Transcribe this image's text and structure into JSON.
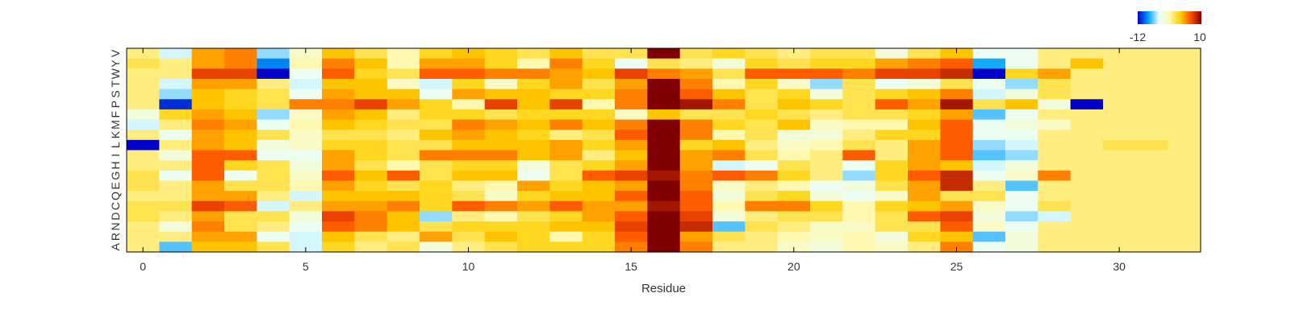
{
  "chart_data": {
    "type": "heatmap",
    "title": "",
    "xlabel": "Residue",
    "ylabel": "",
    "x_ticks": [
      0,
      5,
      10,
      15,
      20,
      25,
      30
    ],
    "xlim": [
      -0.5,
      32.5
    ],
    "row_labels": [
      "V",
      "Y",
      "W",
      "T",
      "S",
      "P",
      "F",
      "M",
      "K",
      "L",
      "I",
      "H",
      "G",
      "E",
      "Q",
      "C",
      "D",
      "N",
      "R",
      "A"
    ],
    "colorbar": {
      "min": -12,
      "max": 10,
      "min_label": "-12",
      "max_label": "10",
      "colors": [
        "#0000c8",
        "#00a0ff",
        "#e8ffff",
        "#fff8b0",
        "#ffd000",
        "#ff5000",
        "#800000"
      ]
    },
    "values": [
      [
        0,
        -5,
        4,
        5,
        -6,
        -2,
        3,
        1,
        -1,
        2,
        3,
        2,
        1,
        3,
        1,
        1,
        10,
        1,
        2,
        1,
        0,
        1,
        1,
        -3,
        1,
        3,
        -4,
        -4,
        0,
        0,
        0,
        0,
        0
      ],
      [
        1,
        0,
        4,
        5,
        -9,
        -1,
        5,
        3,
        -1,
        4,
        4,
        2,
        -1,
        5,
        2,
        -4,
        1,
        0,
        -3,
        2,
        1,
        2,
        2,
        4,
        5,
        6,
        -8,
        -4,
        0,
        3,
        0,
        0,
        0
      ],
      [
        0,
        0,
        7,
        7,
        -12,
        -4,
        6,
        2,
        1,
        6,
        6,
        5,
        5,
        4,
        3,
        7,
        5,
        4,
        1,
        6,
        6,
        6,
        5,
        7,
        7,
        8,
        -12,
        2,
        4,
        0,
        0,
        0,
        0
      ],
      [
        0,
        -5,
        4,
        4,
        0,
        -5,
        3,
        3,
        -2,
        -5,
        2,
        -2,
        2,
        4,
        1,
        4,
        10,
        5,
        -1,
        2,
        -2,
        -6,
        1,
        -4,
        -3,
        1,
        -4,
        -6,
        1,
        0,
        0,
        0,
        0
      ],
      [
        0,
        -6,
        3,
        2,
        1,
        -4,
        4,
        3,
        3,
        -4,
        4,
        3,
        3,
        2,
        2,
        5,
        10,
        6,
        3,
        1,
        2,
        -3,
        1,
        2,
        3,
        5,
        -5,
        -3,
        1,
        0,
        0,
        0,
        0
      ],
      [
        0,
        -11,
        3,
        2,
        1,
        5,
        5,
        7,
        4,
        2,
        -1,
        7,
        3,
        7,
        -1,
        5,
        10,
        9,
        5,
        1,
        3,
        2,
        1,
        6,
        4,
        9,
        1,
        3,
        -3,
        -12,
        0,
        0,
        0
      ],
      [
        -3,
        2,
        4,
        3,
        -6,
        -2,
        4,
        3,
        0,
        2,
        2,
        1,
        2,
        2,
        2,
        -2,
        3,
        1,
        1,
        2,
        1,
        0,
        1,
        1,
        2,
        4,
        -7,
        -4,
        0,
        0,
        0,
        0,
        0
      ],
      [
        -5,
        0,
        5,
        4,
        -4,
        -1,
        3,
        2,
        1,
        1,
        5,
        4,
        3,
        5,
        3,
        5,
        10,
        5,
        2,
        1,
        3,
        -2,
        -1,
        -1,
        3,
        6,
        -4,
        -3,
        -2,
        0,
        0,
        0,
        0
      ],
      [
        0,
        -4,
        4,
        3,
        1,
        -2,
        1,
        1,
        0,
        3,
        4,
        3,
        2,
        0,
        1,
        6,
        10,
        5,
        -1,
        1,
        -3,
        -3,
        0,
        2,
        2,
        6,
        -4,
        -4,
        0,
        0,
        0,
        0,
        0
      ],
      [
        -12,
        0,
        4,
        3,
        -3,
        -2,
        2,
        2,
        1,
        1,
        3,
        3,
        3,
        4,
        2,
        4,
        10,
        2,
        3,
        0,
        -2,
        -1,
        1,
        0,
        4,
        6,
        -6,
        -5,
        0,
        0,
        1,
        1,
        0
      ],
      [
        0,
        -3,
        6,
        6,
        -4,
        -4,
        4,
        2,
        1,
        5,
        5,
        5,
        3,
        4,
        0,
        3,
        10,
        4,
        5,
        1,
        -1,
        0,
        6,
        0,
        4,
        6,
        -7,
        -6,
        0,
        0,
        0,
        0,
        0
      ],
      [
        0,
        0,
        6,
        2,
        1,
        -3,
        4,
        1,
        -1,
        1,
        2,
        2,
        -3,
        1,
        2,
        4,
        10,
        4,
        -5,
        -4,
        1,
        0,
        -4,
        2,
        4,
        3,
        -5,
        -3,
        0,
        0,
        0,
        0,
        0
      ],
      [
        1,
        -4,
        6,
        -4,
        1,
        -2,
        6,
        3,
        6,
        1,
        3,
        3,
        -4,
        1,
        6,
        7,
        9,
        5,
        6,
        5,
        2,
        0,
        -6,
        2,
        6,
        8,
        -4,
        -2,
        5,
        0,
        0,
        0,
        0
      ],
      [
        1,
        0,
        4,
        1,
        1,
        -1,
        4,
        2,
        1,
        2,
        0,
        -1,
        4,
        2,
        3,
        4,
        10,
        5,
        -2,
        0,
        -1,
        -4,
        -3,
        1,
        4,
        8,
        0,
        -7,
        0,
        0,
        0,
        0,
        0
      ],
      [
        0,
        0,
        4,
        4,
        0,
        -5,
        3,
        3,
        3,
        2,
        1,
        -2,
        2,
        3,
        3,
        6,
        10,
        6,
        -3,
        1,
        2,
        -3,
        -4,
        -2,
        4,
        1,
        1,
        -4,
        0,
        0,
        0,
        0,
        0
      ],
      [
        1,
        1,
        7,
        6,
        -5,
        0,
        4,
        4,
        5,
        2,
        6,
        5,
        4,
        6,
        4,
        4,
        9,
        6,
        -1,
        5,
        5,
        2,
        -1,
        2,
        3,
        4,
        -2,
        -4,
        1,
        0,
        0,
        0,
        0
      ],
      [
        1,
        0,
        4,
        1,
        1,
        -3,
        7,
        5,
        3,
        -6,
        0,
        -1,
        1,
        2,
        4,
        6,
        10,
        7,
        -3,
        0,
        1,
        1,
        -1,
        1,
        6,
        7,
        -3,
        -6,
        -5,
        0,
        0,
        0,
        0
      ],
      [
        0,
        -3,
        5,
        1,
        0,
        -4,
        6,
        5,
        3,
        1,
        2,
        2,
        2,
        3,
        3,
        7,
        10,
        8,
        -7,
        1,
        0,
        -2,
        -2,
        1,
        1,
        6,
        -2,
        -4,
        0,
        0,
        0,
        0,
        0
      ],
      [
        0,
        0,
        4,
        4,
        -4,
        -5,
        3,
        1,
        0,
        4,
        1,
        3,
        2,
        -1,
        2,
        6,
        10,
        4,
        1,
        0,
        -1,
        -2,
        -1,
        -3,
        2,
        3,
        -7,
        -3,
        0,
        0,
        0,
        0,
        0
      ],
      [
        0,
        -7,
        3,
        3,
        1,
        -5,
        2,
        0,
        1,
        -3,
        0,
        1,
        2,
        2,
        2,
        5,
        10,
        5,
        0,
        0,
        -2,
        -3,
        -1,
        -2,
        0,
        5,
        -4,
        -3,
        0,
        0,
        0,
        0,
        0
      ]
    ]
  }
}
